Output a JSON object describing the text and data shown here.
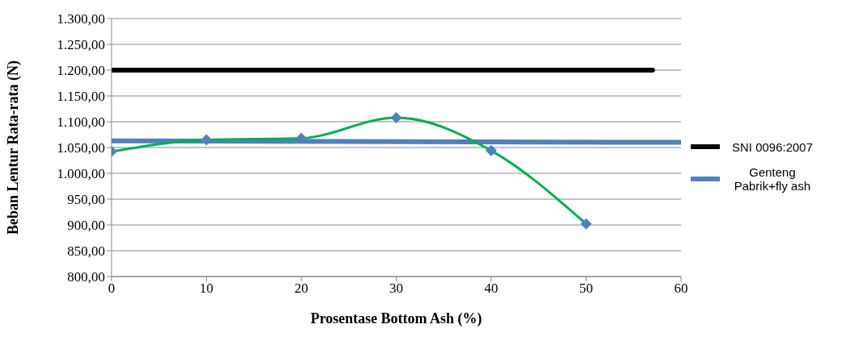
{
  "chart_data": {
    "type": "line",
    "xlabel": "Prosentase Bottom Ash (%)",
    "ylabel": "Beban Lentur Rata-rata (N)",
    "xlim": [
      0,
      60
    ],
    "xticks": [
      0,
      10,
      20,
      30,
      40,
      50,
      60
    ],
    "ylim": [
      800,
      1300
    ],
    "yticks": [
      {
        "value": 800,
        "label": "800,00"
      },
      {
        "value": 850,
        "label": "850,00"
      },
      {
        "value": 900,
        "label": "900,00"
      },
      {
        "value": 950,
        "label": "950,00"
      },
      {
        "value": 1000,
        "label": "1.000,00"
      },
      {
        "value": 1050,
        "label": "1.050,00"
      },
      {
        "value": 1100,
        "label": "1.100,00"
      },
      {
        "value": 1150,
        "label": "1.150,00"
      },
      {
        "value": 1200,
        "label": "1.200,00"
      },
      {
        "value": 1250,
        "label": "1.250,00"
      },
      {
        "value": 1300,
        "label": "1.300,00"
      }
    ],
    "grid": "y",
    "legend": "right",
    "line_style": "solid",
    "series": [
      {
        "name": "SNI 0096:2007",
        "color": "#000000",
        "x": [
          0,
          57
        ],
        "values": [
          1200,
          1200
        ],
        "marker": "none"
      },
      {
        "name": "Genteng Pabrik+fly ash",
        "color": "#4f81bd",
        "x": [
          0,
          60
        ],
        "values": [
          1063,
          1060
        ],
        "marker": "none"
      },
      {
        "color": "#00b050",
        "x": [
          0,
          10,
          20,
          30,
          40,
          50
        ],
        "values": [
          1042,
          1065,
          1068,
          1108,
          1044,
          902
        ],
        "marker": "diamond",
        "colors": [
          "#4f81bd",
          "#4f81bd",
          "#4f81bd",
          "#4f81bd",
          "#4f81bd",
          "#4f81bd"
        ]
      }
    ]
  }
}
